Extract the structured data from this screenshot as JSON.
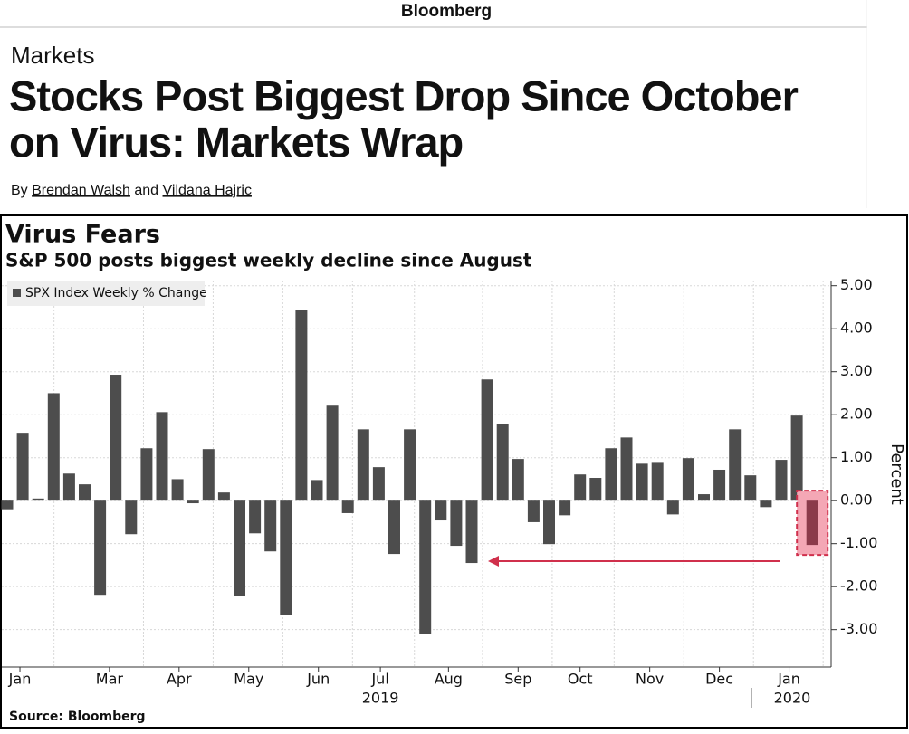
{
  "header": {
    "brand": "Bloomberg",
    "section": "Markets",
    "headline": [
      "Stocks Post Biggest Drop Since October",
      "on Virus: Markets Wrap"
    ],
    "byline": {
      "prefix": "By",
      "authors": [
        "Brendan Walsh",
        "Vildana Hajric"
      ],
      "joiner": "and"
    }
  },
  "chart_data": {
    "type": "bar",
    "title": "Virus Fears",
    "subtitle": "S&P 500 posts biggest weekly decline since August",
    "source": "Source: Bloomberg",
    "y_label": "Percent",
    "series": [
      {
        "name": "SPX Index Weekly % Change",
        "color": "#4d4d4d",
        "highlight_color": "#8b3a4a",
        "values": [
          -0.2,
          1.58,
          0.05,
          2.5,
          0.63,
          0.38,
          -2.19,
          2.93,
          -0.78,
          1.22,
          2.06,
          0.5,
          -0.06,
          1.2,
          0.19,
          -2.21,
          -0.76,
          -1.18,
          -2.65,
          4.44,
          0.48,
          2.21,
          -0.29,
          1.66,
          0.78,
          -1.24,
          1.66,
          -3.1,
          -0.46,
          -1.05,
          -1.45,
          2.82,
          1.79,
          0.97,
          -0.5,
          -1.01,
          -0.34,
          0.61,
          0.53,
          1.22,
          1.47,
          0.86,
          0.88,
          -0.32,
          0.99,
          0.15,
          0.72,
          1.66,
          0.59,
          -0.15,
          0.95,
          1.98,
          -1.03
        ]
      }
    ],
    "ylim": [
      -3.87,
      5.12
    ],
    "yticks": [
      {
        "value": 5,
        "label": "5.00"
      },
      {
        "value": 4,
        "label": "4.00"
      },
      {
        "value": 3,
        "label": "3.00"
      },
      {
        "value": 2,
        "label": "2.00"
      },
      {
        "value": 1,
        "label": "1.00"
      },
      {
        "value": 0,
        "label": "0.00"
      },
      {
        "value": -1,
        "label": "-1.00"
      },
      {
        "value": -2,
        "label": "-2.00"
      },
      {
        "value": -3,
        "label": "-3.00"
      }
    ],
    "xticks": [
      {
        "value": 0.82,
        "label": "Jan"
      },
      {
        "value": 6.6,
        "label": "Mar"
      },
      {
        "value": 11.1,
        "label": "Apr"
      },
      {
        "value": 15.6,
        "label": "May"
      },
      {
        "value": 20.1,
        "label": "Jun"
      },
      {
        "value": 24.1,
        "label": "Jul"
      },
      {
        "value": 28.5,
        "label": "Aug"
      },
      {
        "value": 33.0,
        "label": "Sep"
      },
      {
        "value": 37.0,
        "label": "Oct"
      },
      {
        "value": 41.5,
        "label": "Nov"
      },
      {
        "value": 46.0,
        "label": "Dec"
      },
      {
        "value": 50.5,
        "label": "Jan"
      }
    ],
    "year_labels": [
      {
        "value": 24.1,
        "label": "2019"
      },
      {
        "value": 50.7,
        "label": "2020"
      }
    ],
    "grid": true
  }
}
